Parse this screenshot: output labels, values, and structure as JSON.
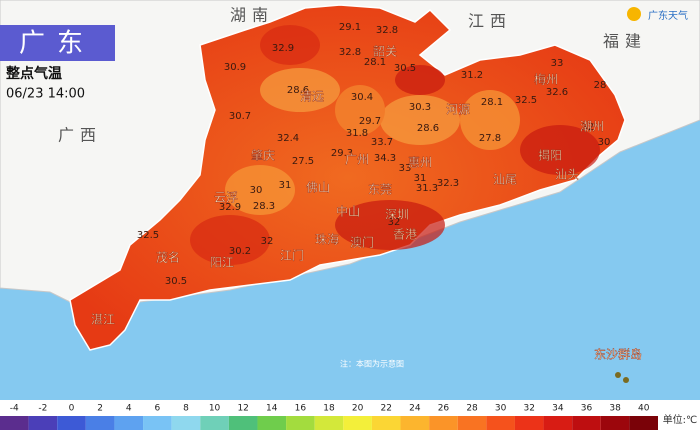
{
  "header": {
    "title": "广东",
    "subtitle": "整点气温",
    "time": "06/23 14:00"
  },
  "logo": "广东天气",
  "neighbors": [
    "湖南",
    "江西",
    "福建",
    "广西"
  ],
  "cities": [
    "韶关",
    "清远",
    "河源",
    "梅州",
    "潮州",
    "揭阳",
    "汕头",
    "汕尾",
    "肇庆",
    "广州",
    "惠州",
    "云浮",
    "佛山",
    "东莞",
    "中山",
    "深圳",
    "珠海",
    "澳门",
    "香港",
    "江门",
    "阳江",
    "茂名",
    "湛江",
    "东沙群岛"
  ],
  "readings": [
    "29.1",
    "32.8",
    "32.9",
    "32.8",
    "28.1",
    "30.5",
    "30.9",
    "28.6",
    "30.4",
    "31.2",
    "33",
    "32.6",
    "28",
    "32.5",
    "28.1",
    "30.3",
    "30.7",
    "29.7",
    "28.6",
    "31.8",
    "27.8",
    "32",
    "30",
    "32.4",
    "33.7",
    "29.3",
    "27.5",
    "34.3",
    "33",
    "31",
    "31.3",
    "31",
    "30",
    "32.3",
    "32.9",
    "28.3",
    "32",
    "32.5",
    "30.2",
    "32",
    "30.5"
  ],
  "note": "注：本图为示意图",
  "legend": {
    "ticks": [
      -4,
      -2,
      0,
      2,
      4,
      6,
      8,
      10,
      12,
      14,
      16,
      18,
      20,
      22,
      24,
      26,
      28,
      30,
      32,
      34,
      36,
      38,
      40
    ],
    "colors": [
      "#5b2d8e",
      "#4b3fb8",
      "#3d5ad6",
      "#4a7fe6",
      "#5ea2f0",
      "#79c3f5",
      "#8fd8ee",
      "#6fd0b8",
      "#4fc07a",
      "#6fcd4c",
      "#a3dc3e",
      "#d3e83a",
      "#f3ef3a",
      "#fbd634",
      "#fcb52e",
      "#fb9428",
      "#f97322",
      "#f5521c",
      "#ec3318",
      "#d81c14",
      "#be0e10",
      "#9c060c",
      "#7a0208"
    ],
    "unit": "单位:℃"
  }
}
